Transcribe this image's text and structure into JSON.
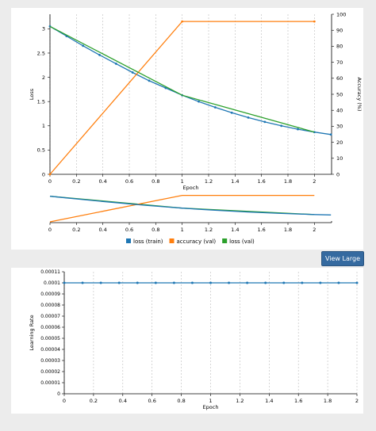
{
  "view_large_label": "View Large",
  "colors": {
    "loss_train": "#1f77b4",
    "accuracy_val": "#ff7f0e",
    "loss_val": "#2ca02c",
    "lr": "#1f77b4",
    "grid": "#bbbbbb"
  },
  "chart_data": [
    {
      "type": "line",
      "title": "",
      "xlabel": "Epoch",
      "ylabel": "Loss",
      "y2label": "Accuracy (%)",
      "xlim": [
        0,
        2.13
      ],
      "ylim": [
        0,
        3.3
      ],
      "y2lim": [
        0,
        100
      ],
      "grid": "vertical dashed",
      "x_ticks": [
        "0",
        "0.2",
        "0.4",
        "0.6",
        "0.8",
        "1",
        "1.2",
        "1.4",
        "1.6",
        "1.8",
        "2"
      ],
      "y_ticks": [
        "0",
        "0.5",
        "1",
        "1.5",
        "2",
        "2.5",
        "3"
      ],
      "y2_ticks": [
        "0",
        "10",
        "20",
        "30",
        "40",
        "50",
        "60",
        "70",
        "80",
        "90",
        "100"
      ],
      "legend_position": "bottom",
      "series": [
        {
          "name": "loss (train)",
          "axis": "left",
          "markers": true,
          "x": [
            0,
            0.125,
            0.25,
            0.375,
            0.5,
            0.625,
            0.75,
            0.875,
            1.0,
            1.125,
            1.25,
            1.375,
            1.5,
            1.625,
            1.75,
            1.875,
            2.0,
            2.125
          ],
          "y": [
            3.05,
            2.85,
            2.65,
            2.46,
            2.28,
            2.1,
            1.93,
            1.78,
            1.63,
            1.5,
            1.38,
            1.27,
            1.17,
            1.08,
            1.0,
            0.93,
            0.87,
            0.82
          ]
        },
        {
          "name": "accuracy (val)",
          "axis": "right",
          "markers": true,
          "x": [
            0,
            1,
            2
          ],
          "y": [
            0,
            95.5,
            95.5
          ]
        },
        {
          "name": "loss (val)",
          "axis": "left",
          "markers": false,
          "x": [
            0,
            1,
            2
          ],
          "y": [
            3.05,
            1.63,
            0.87
          ]
        }
      ],
      "overview": {
        "x_ticks": [
          "0",
          "0.2",
          "0.4",
          "0.6",
          "0.8",
          "1",
          "1.2",
          "1.4",
          "1.6",
          "1.8",
          "2"
        ]
      }
    },
    {
      "type": "line",
      "title": "",
      "xlabel": "Epoch",
      "ylabel": "Learning Rate",
      "xlim": [
        0,
        2
      ],
      "ylim": [
        0,
        0.00011
      ],
      "grid": "vertical dashed",
      "x_ticks": [
        "0",
        "0.2",
        "0.4",
        "0.6",
        "0.8",
        "1",
        "1.2",
        "1.4",
        "1.6",
        "1.8",
        "2"
      ],
      "y_ticks": [
        "0",
        "0.00001",
        "0.00002",
        "0.00003",
        "0.00004",
        "0.00005",
        "0.00006",
        "0.00007",
        "0.00008",
        "0.00009",
        "0.0001",
        "0.00011"
      ],
      "series": [
        {
          "name": "",
          "markers": true,
          "x": [
            0,
            0.125,
            0.25,
            0.375,
            0.5,
            0.625,
            0.75,
            0.875,
            1.0,
            1.125,
            1.25,
            1.375,
            1.5,
            1.625,
            1.75,
            1.875,
            2.0
          ],
          "y": [
            0.0001,
            0.0001,
            0.0001,
            0.0001,
            0.0001,
            0.0001,
            0.0001,
            0.0001,
            0.0001,
            0.0001,
            0.0001,
            0.0001,
            0.0001,
            0.0001,
            0.0001,
            0.0001,
            0.0001
          ]
        }
      ]
    }
  ]
}
